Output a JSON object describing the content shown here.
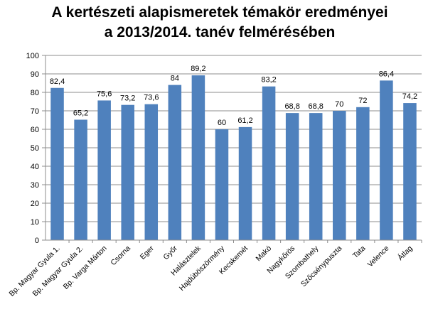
{
  "chart_data": {
    "type": "bar",
    "title_lines": [
      "A kertészeti alapismeretek témakör eredményei",
      "a 2013/2014. tanév felmérésében"
    ],
    "xlabel": "",
    "ylabel": "",
    "ylim": [
      0,
      100
    ],
    "yticks": [
      0,
      10,
      20,
      30,
      40,
      50,
      60,
      70,
      80,
      90,
      100
    ],
    "grid": true,
    "legend": "none",
    "bar_color": "#4f81bd",
    "categories": [
      "Bp. Magyar Gyula 1.",
      "Bp. Magyar Gyula 2.",
      "Bp. Varga Márton",
      "Csorna",
      "Eger",
      "Győr",
      "Halásztelek",
      "Hajdúböszörmény",
      "Kecskemét",
      "Makó",
      "Nagykőrös",
      "Szombathely",
      "Szőcsénypuszta",
      "Tata",
      "Velence",
      "Átlag"
    ],
    "values": [
      82.4,
      65.2,
      75.6,
      73.2,
      73.6,
      84,
      89.2,
      60,
      61.2,
      83.2,
      68.8,
      68.8,
      70,
      72,
      86.4,
      74.2
    ],
    "value_labels": [
      "82,4",
      "65,2",
      "75,6",
      "73,2",
      "73,6",
      "84",
      "89,2",
      "60",
      "61,2",
      "83,2",
      "68,8",
      "68,8",
      "70",
      "72",
      "86,4",
      "74,2"
    ]
  }
}
